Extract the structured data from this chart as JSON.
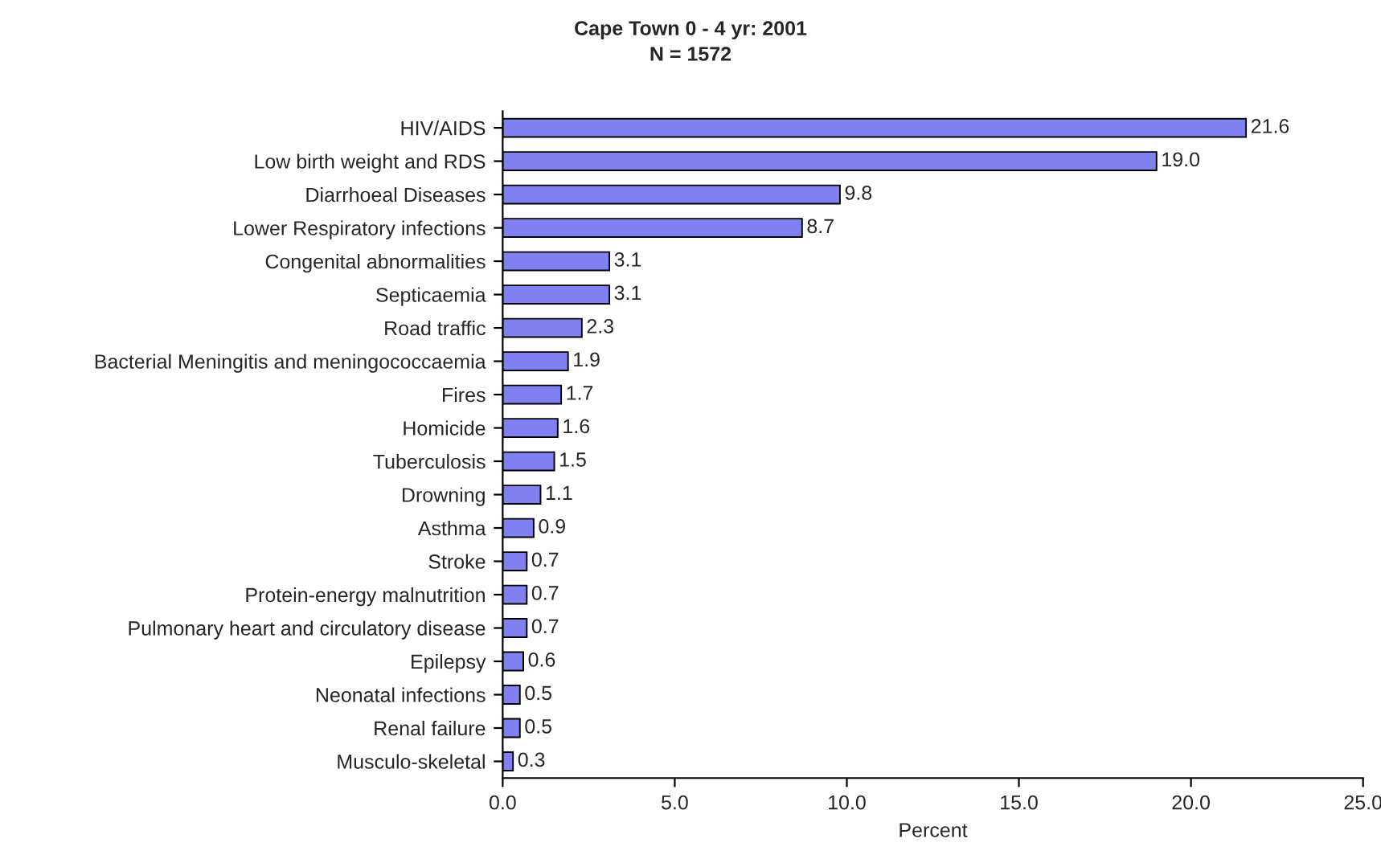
{
  "chart_data": {
    "type": "bar",
    "orientation": "horizontal",
    "title": "Cape Town 0 - 4 yr: 2001",
    "subtitle": "N = 1572",
    "xlabel": "Percent",
    "categories": [
      "HIV/AIDS",
      "Low birth weight and RDS",
      "Diarrhoeal Diseases",
      "Lower Respiratory infections",
      "Congenital abnormalities",
      "Septicaemia",
      "Road traffic",
      "Bacterial Meningitis and meningococcaemia",
      "Fires",
      "Homicide",
      "Tuberculosis",
      "Drowning",
      "Asthma",
      "Stroke",
      "Protein-energy malnutrition",
      "Pulmonary heart and circulatory disease",
      "Epilepsy",
      "Neonatal infections",
      "Renal failure",
      "Musculo-skeletal"
    ],
    "values": [
      21.6,
      19.0,
      9.8,
      8.7,
      3.1,
      3.1,
      2.3,
      1.9,
      1.7,
      1.6,
      1.5,
      1.1,
      0.9,
      0.7,
      0.7,
      0.7,
      0.6,
      0.5,
      0.5,
      0.3
    ],
    "color": "#8080f0",
    "xlim": [
      0,
      25
    ],
    "xticks": [
      {
        "value": 0,
        "label": "0.0"
      },
      {
        "value": 5,
        "label": "5.0"
      },
      {
        "value": 10,
        "label": "10.0"
      },
      {
        "value": 15,
        "label": "15.0"
      },
      {
        "value": 20,
        "label": "20.0"
      },
      {
        "value": 25,
        "label": "25.0"
      }
    ],
    "value_labels": [
      "21.6",
      "19.0",
      "9.8",
      "8.7",
      "3.1",
      "3.1",
      "2.3",
      "1.9",
      "1.7",
      "1.6",
      "1.5",
      "1.1",
      "0.9",
      "0.7",
      "0.7",
      "0.7",
      "0.6",
      "0.5",
      "0.5",
      "0.3"
    ],
    "grid": false,
    "legend": false
  }
}
